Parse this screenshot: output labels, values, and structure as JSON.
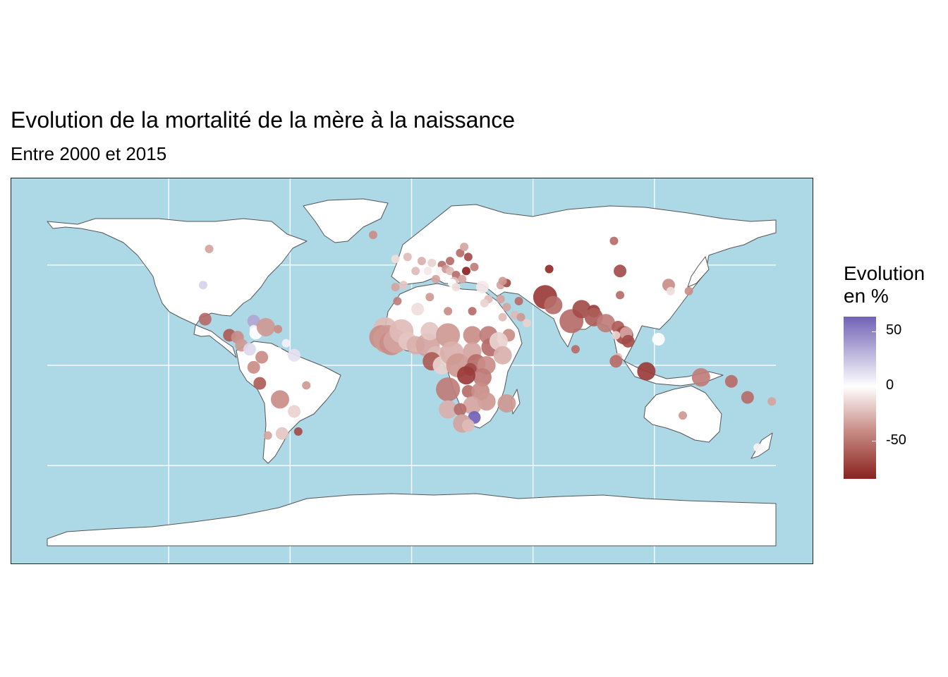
{
  "title": "Evolution de la mortalité de la mère à la naissance",
  "subtitle": "Entre 2000 et 2015",
  "legend": {
    "title_line1": "Evolution",
    "title_line2": "en %",
    "ticks": [
      {
        "label": "50"
      },
      {
        "label": "0"
      },
      {
        "label": "-50"
      }
    ]
  },
  "colors": {
    "ocean": "#add8e6",
    "land": "#ffffff",
    "border": "#555555",
    "increase": "#7162b5",
    "neutral": "#ffffff",
    "decrease": "#8b2220"
  },
  "chart_data": {
    "type": "scatter",
    "description_kind": "proportional-symbol world map",
    "x_axis": "longitude",
    "y_axis": "latitude",
    "xlim": [
      -180,
      180
    ],
    "ylim": [
      -90,
      90
    ],
    "value_range": [
      -83,
      62
    ],
    "points": [
      {
        "lon": -100,
        "lat": 58,
        "v": -40,
        "s": 1
      },
      {
        "lon": -103,
        "lat": 40,
        "v": 18,
        "s": 1
      },
      {
        "lon": -102,
        "lat": 23,
        "v": -60,
        "s": 2
      },
      {
        "lon": -90,
        "lat": 15,
        "v": -65,
        "s": 2
      },
      {
        "lon": -86,
        "lat": 14,
        "v": -50,
        "s": 2
      },
      {
        "lon": -84,
        "lat": 10,
        "v": -45,
        "s": 2
      },
      {
        "lon": -80,
        "lat": 8,
        "v": 15,
        "s": 2
      },
      {
        "lon": -78,
        "lat": 22,
        "v": 35,
        "s": 2
      },
      {
        "lon": -78,
        "lat": 18,
        "v": 5,
        "s": 1
      },
      {
        "lon": -77,
        "lat": 16,
        "v": 0,
        "s": 2
      },
      {
        "lon": -72,
        "lat": 19,
        "v": -45,
        "s": 3
      },
      {
        "lon": -66,
        "lat": 18,
        "v": -50,
        "s": 1
      },
      {
        "lon": -62,
        "lat": 11,
        "v": 5,
        "s": 1
      },
      {
        "lon": -66,
        "lat": 7,
        "v": 0,
        "s": 1
      },
      {
        "lon": -58,
        "lat": 5,
        "v": 12,
        "s": 2
      },
      {
        "lon": -74,
        "lat": 4,
        "v": -50,
        "s": 2
      },
      {
        "lon": -78,
        "lat": -1,
        "v": -50,
        "s": 2
      },
      {
        "lon": -75,
        "lat": -9,
        "v": -65,
        "s": 2
      },
      {
        "lon": -52,
        "lat": -10,
        "v": -45,
        "s": 1
      },
      {
        "lon": -65,
        "lat": -17,
        "v": -50,
        "s": 3
      },
      {
        "lon": -58,
        "lat": -23,
        "v": -20,
        "s": 2
      },
      {
        "lon": -64,
        "lat": -34,
        "v": -25,
        "s": 2
      },
      {
        "lon": -56,
        "lat": -33,
        "v": -70,
        "s": 1
      },
      {
        "lon": -71,
        "lat": -35,
        "v": -40,
        "s": 1
      },
      {
        "lon": -19,
        "lat": 65,
        "v": -50,
        "s": 1
      },
      {
        "lon": -8,
        "lat": 53,
        "v": -15,
        "s": 1
      },
      {
        "lon": -2,
        "lat": 54,
        "v": -30,
        "s": 1
      },
      {
        "lon": -4,
        "lat": 40,
        "v": -25,
        "s": 1
      },
      {
        "lon": -8,
        "lat": 39,
        "v": -40,
        "s": 1
      },
      {
        "lon": 2,
        "lat": 47,
        "v": -30,
        "s": 1
      },
      {
        "lon": 5,
        "lat": 52,
        "v": -35,
        "s": 1
      },
      {
        "lon": 10,
        "lat": 51,
        "v": -20,
        "s": 1
      },
      {
        "lon": 8,
        "lat": 47,
        "v": -10,
        "s": 1
      },
      {
        "lon": 12,
        "lat": 43,
        "v": -40,
        "s": 1
      },
      {
        "lon": 15,
        "lat": 50,
        "v": -60,
        "s": 1
      },
      {
        "lon": 19,
        "lat": 52,
        "v": -60,
        "s": 1
      },
      {
        "lon": 14,
        "lat": 47,
        "v": -5,
        "s": 1
      },
      {
        "lon": 17,
        "lat": 48,
        "v": -45,
        "s": 1
      },
      {
        "lon": 19,
        "lat": 47,
        "v": -30,
        "s": 1
      },
      {
        "lon": 22,
        "lat": 45,
        "v": -60,
        "s": 1
      },
      {
        "lon": 25,
        "lat": 43,
        "v": -40,
        "s": 1
      },
      {
        "lon": 27,
        "lat": 47,
        "v": -83,
        "s": 1
      },
      {
        "lon": 28,
        "lat": 54,
        "v": -70,
        "s": 1
      },
      {
        "lon": 24,
        "lat": 56,
        "v": -60,
        "s": 1
      },
      {
        "lon": 26,
        "lat": 59,
        "v": -40,
        "s": 1
      },
      {
        "lon": 31,
        "lat": 49,
        "v": -55,
        "s": 1
      },
      {
        "lon": 21,
        "lat": 42,
        "v": -30,
        "s": 1
      },
      {
        "lon": 20,
        "lat": 41,
        "v": 0,
        "s": 1
      },
      {
        "lon": 22,
        "lat": 39,
        "v": -15,
        "s": 1
      },
      {
        "lon": 35,
        "lat": 39,
        "v": -10,
        "s": 2
      },
      {
        "lon": 44,
        "lat": 40,
        "v": -40,
        "s": 1
      },
      {
        "lon": 47,
        "lat": 41,
        "v": -70,
        "s": 1
      },
      {
        "lon": 45,
        "lat": 42,
        "v": -45,
        "s": 1
      },
      {
        "lon": 68,
        "lat": 48,
        "v": -80,
        "s": 1
      },
      {
        "lon": 100,
        "lat": 62,
        "v": -60,
        "s": 1
      },
      {
        "lon": 103,
        "lat": 47,
        "v": -70,
        "s": 2
      },
      {
        "lon": 103,
        "lat": 35,
        "v": -60,
        "s": 1
      },
      {
        "lon": 127,
        "lat": 40,
        "v": -50,
        "s": 2
      },
      {
        "lon": 128,
        "lat": 37,
        "v": -15,
        "s": 1
      },
      {
        "lon": 137,
        "lat": 37,
        "v": -50,
        "s": 1
      },
      {
        "lon": 38,
        "lat": 33,
        "v": -30,
        "s": 1
      },
      {
        "lon": 36,
        "lat": 31,
        "v": -20,
        "s": 1
      },
      {
        "lon": 44,
        "lat": 33,
        "v": -40,
        "s": 1
      },
      {
        "lon": 53,
        "lat": 32,
        "v": -60,
        "s": 1
      },
      {
        "lon": 30,
        "lat": 27,
        "v": -60,
        "s": 1
      },
      {
        "lon": 18,
        "lat": 27,
        "v": -50,
        "s": 1
      },
      {
        "lon": 9,
        "lat": 34,
        "v": -45,
        "s": 1
      },
      {
        "lon": 3,
        "lat": 28,
        "v": -15,
        "s": 2
      },
      {
        "lon": -7,
        "lat": 32,
        "v": -55,
        "s": 1
      },
      {
        "lon": 45,
        "lat": 24,
        "v": -30,
        "s": 1
      },
      {
        "lon": 47,
        "lat": 29,
        "v": -40,
        "s": 1
      },
      {
        "lon": 51,
        "lat": 25,
        "v": -30,
        "s": 1
      },
      {
        "lon": 54,
        "lat": 24,
        "v": -45,
        "s": 1
      },
      {
        "lon": 57,
        "lat": 21,
        "v": -20,
        "s": 1
      },
      {
        "lon": 48,
        "lat": 15,
        "v": -50,
        "s": 2
      },
      {
        "lon": 66,
        "lat": 34,
        "v": -75,
        "s": 4
      },
      {
        "lon": 70,
        "lat": 30,
        "v": -60,
        "s": 3
      },
      {
        "lon": 79,
        "lat": 22,
        "v": -60,
        "s": 4
      },
      {
        "lon": 84,
        "lat": 28,
        "v": -70,
        "s": 3
      },
      {
        "lon": 90,
        "lat": 27,
        "v": -75,
        "s": 2
      },
      {
        "lon": 90,
        "lat": 24,
        "v": -65,
        "s": 3
      },
      {
        "lon": 96,
        "lat": 21,
        "v": -55,
        "s": 3
      },
      {
        "lon": 81,
        "lat": 8,
        "v": -60,
        "s": 1
      },
      {
        "lon": 102,
        "lat": 19,
        "v": -65,
        "s": 2
      },
      {
        "lon": 105,
        "lat": 15,
        "v": -70,
        "s": 3
      },
      {
        "lon": 106,
        "lat": 16,
        "v": -40,
        "s": 2
      },
      {
        "lon": 101,
        "lat": 15,
        "v": -20,
        "s": 1
      },
      {
        "lon": 107,
        "lat": 12,
        "v": -70,
        "s": 2
      },
      {
        "lon": 122,
        "lat": 13,
        "v": 0,
        "s": 2
      },
      {
        "lon": 102,
        "lat": 4,
        "v": -30,
        "s": 1
      },
      {
        "lon": 101,
        "lat": 2,
        "v": -60,
        "s": 2
      },
      {
        "lon": 116,
        "lat": -3,
        "v": -75,
        "s": 3
      },
      {
        "lon": 143,
        "lat": -6,
        "v": -55,
        "s": 3
      },
      {
        "lon": 158,
        "lat": -8,
        "v": -60,
        "s": 2
      },
      {
        "lon": 166,
        "lat": -16,
        "v": -60,
        "s": 2
      },
      {
        "lon": 178,
        "lat": -18,
        "v": -40,
        "s": 1
      },
      {
        "lon": 134,
        "lat": -25,
        "v": -45,
        "s": 1
      },
      {
        "lon": 171,
        "lat": -41,
        "v": -5,
        "s": 1
      },
      {
        "lon": -13,
        "lat": 18,
        "v": -30,
        "s": 4
      },
      {
        "lon": -15,
        "lat": 14,
        "v": -50,
        "s": 4
      },
      {
        "lon": -12,
        "lat": 13,
        "v": -45,
        "s": 5
      },
      {
        "lon": -10,
        "lat": 11,
        "v": -50,
        "s": 4
      },
      {
        "lon": -8,
        "lat": 12,
        "v": -40,
        "s": 4
      },
      {
        "lon": -5,
        "lat": 17,
        "v": -30,
        "s": 4
      },
      {
        "lon": -2,
        "lat": 12,
        "v": -25,
        "s": 3
      },
      {
        "lon": 2,
        "lat": 10,
        "v": -35,
        "s": 3
      },
      {
        "lon": 8,
        "lat": 10,
        "v": -40,
        "s": 4
      },
      {
        "lon": 9,
        "lat": 17,
        "v": -25,
        "s": 3
      },
      {
        "lon": 18,
        "lat": 15,
        "v": -45,
        "s": 4
      },
      {
        "lon": 12,
        "lat": 5,
        "v": -30,
        "s": 3
      },
      {
        "lon": 10,
        "lat": 2,
        "v": -65,
        "s": 3
      },
      {
        "lon": 15,
        "lat": 0,
        "v": -20,
        "s": 3
      },
      {
        "lon": 20,
        "lat": 6,
        "v": -35,
        "s": 4
      },
      {
        "lon": 23,
        "lat": 0,
        "v": -45,
        "s": 4
      },
      {
        "lon": 30,
        "lat": 15,
        "v": -50,
        "s": 3
      },
      {
        "lon": 30,
        "lat": 7,
        "v": -40,
        "s": 3
      },
      {
        "lon": 38,
        "lat": 15,
        "v": -55,
        "s": 3
      },
      {
        "lon": 39,
        "lat": 9,
        "v": -60,
        "s": 3
      },
      {
        "lon": 43,
        "lat": 12,
        "v": -20,
        "s": 3
      },
      {
        "lon": 45,
        "lat": 5,
        "v": -35,
        "s": 3
      },
      {
        "lon": 32,
        "lat": 1,
        "v": -60,
        "s": 3
      },
      {
        "lon": 37,
        "lat": 0,
        "v": -50,
        "s": 3
      },
      {
        "lon": 29,
        "lat": -2,
        "v": -70,
        "s": 2
      },
      {
        "lon": 35,
        "lat": -6,
        "v": -55,
        "s": 3
      },
      {
        "lon": 27,
        "lat": -5,
        "v": -75,
        "s": 3
      },
      {
        "lon": 18,
        "lat": -12,
        "v": -55,
        "s": 4
      },
      {
        "lon": 28,
        "lat": -13,
        "v": -60,
        "s": 2
      },
      {
        "lon": 34,
        "lat": -13,
        "v": -50,
        "s": 3
      },
      {
        "lon": 37,
        "lat": -18,
        "v": -45,
        "s": 3
      },
      {
        "lon": 30,
        "lat": -20,
        "v": -40,
        "s": 3
      },
      {
        "lon": 18,
        "lat": -22,
        "v": -35,
        "s": 3
      },
      {
        "lon": 24,
        "lat": -22,
        "v": -60,
        "s": 2
      },
      {
        "lon": 31,
        "lat": -26,
        "v": 62,
        "s": 2
      },
      {
        "lon": 25,
        "lat": -29,
        "v": -40,
        "s": 3
      },
      {
        "lon": 28,
        "lat": -30,
        "v": -30,
        "s": 2
      },
      {
        "lon": 47,
        "lat": -19,
        "v": -45,
        "s": 3
      }
    ]
  }
}
